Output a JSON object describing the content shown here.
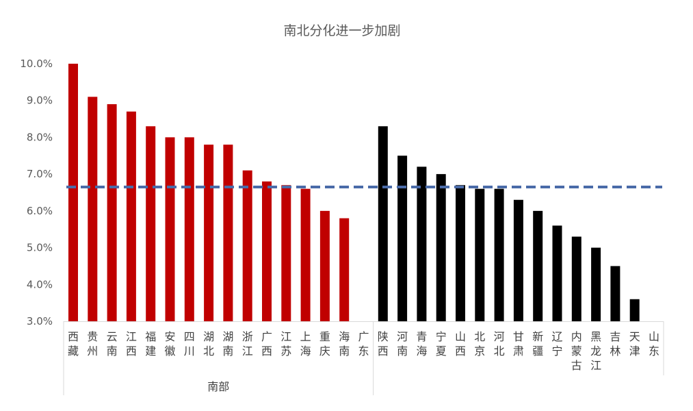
{
  "chart_data": {
    "type": "bar",
    "title": "南北分化进一步加剧",
    "xlabel": "",
    "ylabel": "",
    "ylim": [
      3.0,
      10.0
    ],
    "yticks": [
      "3.0%",
      "4.0%",
      "5.0%",
      "6.0%",
      "7.0%",
      "8.0%",
      "9.0%",
      "10.0%"
    ],
    "grid": false,
    "legend": "none",
    "groups": [
      {
        "name": "南部",
        "start": 0,
        "end": 15
      },
      {
        "name": "",
        "start": 16,
        "end": 30
      }
    ],
    "categories": [
      "西藏",
      "贵州",
      "云南",
      "江西",
      "福建",
      "安徽",
      "四川",
      "湖北",
      "湖南",
      "浙江",
      "广西",
      "江苏",
      "上海",
      "重庆",
      "海南",
      "广东",
      "陕西",
      "河南",
      "青海",
      "宁夏",
      "山西",
      "北京",
      "河北",
      "甘肃",
      "新疆",
      "辽宁",
      "内蒙古",
      "黑龙江",
      "吉林",
      "天津",
      "山东"
    ],
    "category_glyphs": [
      [
        "西",
        "藏"
      ],
      [
        "贵",
        "州"
      ],
      [
        "云",
        "南"
      ],
      [
        "江",
        "西"
      ],
      [
        "福",
        "建"
      ],
      [
        "安",
        "徽"
      ],
      [
        "四",
        "川"
      ],
      [
        "湖",
        "北"
      ],
      [
        "湖",
        "南"
      ],
      [
        "浙",
        "江"
      ],
      [
        "广",
        "西"
      ],
      [
        "江",
        "苏"
      ],
      [
        "上",
        "海"
      ],
      [
        "重",
        "庆"
      ],
      [
        "海",
        "南"
      ],
      [
        "广",
        "东"
      ],
      [
        "陕",
        "西"
      ],
      [
        "河",
        "南"
      ],
      [
        "青",
        "海"
      ],
      [
        "宁",
        "夏"
      ],
      [
        "山",
        "西"
      ],
      [
        "北",
        "京"
      ],
      [
        "河",
        "北"
      ],
      [
        "甘",
        "肃"
      ],
      [
        "新",
        "疆"
      ],
      [
        "辽",
        "宁"
      ],
      [
        "内",
        "蒙",
        "古"
      ],
      [
        "黑",
        "龙",
        "江"
      ],
      [
        "吉",
        "林"
      ],
      [
        "天",
        "津"
      ],
      [
        "山",
        "东"
      ]
    ],
    "values": [
      10.0,
      9.1,
      8.9,
      8.7,
      8.3,
      8.0,
      8.0,
      7.8,
      7.8,
      7.1,
      6.8,
      6.7,
      6.6,
      6.0,
      5.8,
      null,
      8.3,
      7.5,
      7.2,
      7.0,
      6.7,
      6.6,
      6.6,
      6.3,
      6.0,
      5.6,
      5.3,
      5.0,
      4.5,
      3.6,
      null
    ],
    "reference_line": {
      "value": 6.65,
      "style": "dashed"
    },
    "colors": {
      "south": "#C00000",
      "north": "#000000",
      "reference": "#4A6BA8",
      "axis": "#D9D9D9",
      "text": "#595959"
    }
  }
}
